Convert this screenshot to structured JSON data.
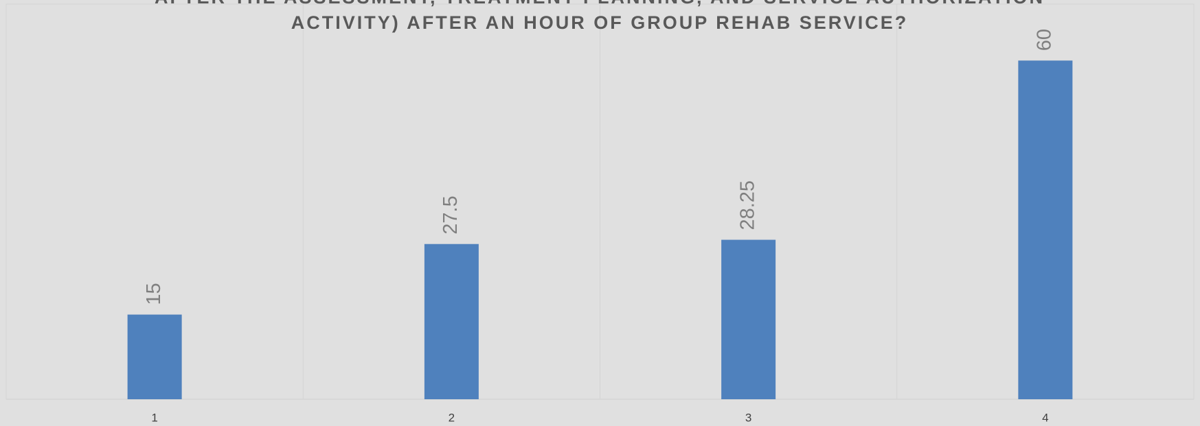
{
  "chart_data": {
    "type": "bar",
    "title": [
      "AFTER THE ASSESSMENT, TREATMENT PLANNING, AND SERVICE AUTHORIZATION",
      "ACTIVITY) AFTER AN HOUR OF GROUP REHAB SERVICE?"
    ],
    "categories": [
      "1",
      "2",
      "3",
      "4"
    ],
    "values": [
      15,
      27.5,
      28.25,
      60
    ],
    "color": "#4f81bd",
    "ylim": [
      0,
      70
    ],
    "grid": true
  }
}
